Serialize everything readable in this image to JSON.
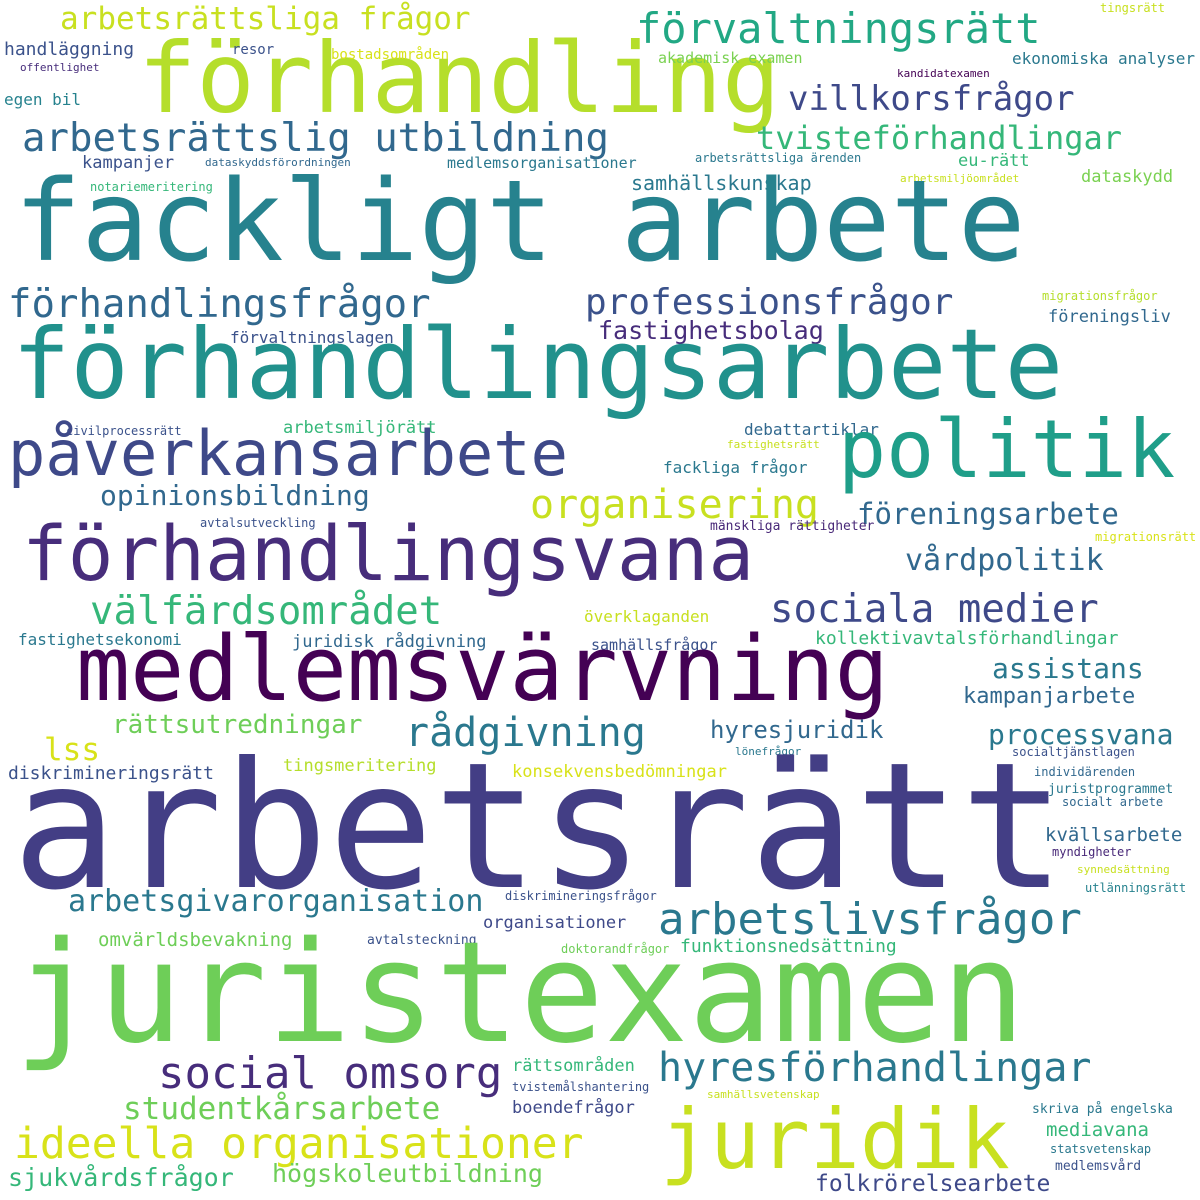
{
  "words": [
    {
      "text": "arbetsrättsliga frågor",
      "color": "#c8e020"
    },
    {
      "text": "förvaltningsrätt",
      "color": "#22a884"
    },
    {
      "text": "tingsrätt",
      "color": "#c8e020"
    },
    {
      "text": "förhandling",
      "color": "#b5de2b"
    },
    {
      "text": "handläggning",
      "color": "#3b528b"
    },
    {
      "text": "resor",
      "color": "#3b528b"
    },
    {
      "text": "bostadsområden",
      "color": "#d8e219"
    },
    {
      "text": "akademisk examen",
      "color": "#7ad151"
    },
    {
      "text": "ekonomiska analyser",
      "color": "#2a788e"
    },
    {
      "text": "offentlighet",
      "color": "#472d7b"
    },
    {
      "text": "kandidatexamen",
      "color": "#440154"
    },
    {
      "text": "egen bil",
      "color": "#26828e"
    },
    {
      "text": "villkorsfrågor",
      "color": "#3e4989"
    },
    {
      "text": "arbetsrättslig utbildning",
      "color": "#31688e"
    },
    {
      "text": "tvisteförhandlingar",
      "color": "#35b779"
    },
    {
      "text": "kampanjer",
      "color": "#3b528b"
    },
    {
      "text": "dataskyddsförordningen",
      "color": "#31688e"
    },
    {
      "text": "medlemsorganisationer",
      "color": "#2a788e"
    },
    {
      "text": "arbetsrättsliga ärenden",
      "color": "#2a788e"
    },
    {
      "text": "eu-rätt",
      "color": "#35b779"
    },
    {
      "text": "samhällskunskap",
      "color": "#2a788e"
    },
    {
      "text": "notariemeritering",
      "color": "#35b779"
    },
    {
      "text": "arbetsmiljöområdet",
      "color": "#c8e020"
    },
    {
      "text": "dataskydd",
      "color": "#7ad151"
    },
    {
      "text": "fackligt arbete",
      "color": "#26828e"
    },
    {
      "text": "förhandlingsfrågor",
      "color": "#31688e"
    },
    {
      "text": "professionsfrågor",
      "color": "#3b528b"
    },
    {
      "text": "migrationsfrågor",
      "color": "#b5de2b"
    },
    {
      "text": "fastighetsbolag",
      "color": "#472d7b"
    },
    {
      "text": "föreningsliv",
      "color": "#31688e"
    },
    {
      "text": "förvaltningslagen",
      "color": "#3b528b"
    },
    {
      "text": "förhandlingsarbete",
      "color": "#21918c"
    },
    {
      "text": "civilprocessrätt",
      "color": "#3b528b"
    },
    {
      "text": "arbetsmiljörätt",
      "color": "#35b779"
    },
    {
      "text": "debattartiklar",
      "color": "#31688e"
    },
    {
      "text": "fastighetsrätt",
      "color": "#c8e020"
    },
    {
      "text": "påverkansarbete",
      "color": "#3e4989"
    },
    {
      "text": "politik",
      "color": "#1f9e89"
    },
    {
      "text": "fackliga frågor",
      "color": "#2a788e"
    },
    {
      "text": "opinionsbildning",
      "color": "#31688e"
    },
    {
      "text": "organisering",
      "color": "#c8e020"
    },
    {
      "text": "föreningsarbete",
      "color": "#31688e"
    },
    {
      "text": "avtalsutveckling",
      "color": "#3b528b"
    },
    {
      "text": "mänskliga rättigheter",
      "color": "#482878"
    },
    {
      "text": "migrationsrätt",
      "color": "#d8e219"
    },
    {
      "text": "förhandlingsvana",
      "color": "#472d7b"
    },
    {
      "text": "vårdpolitik",
      "color": "#31688e"
    },
    {
      "text": "välfärdsområdet",
      "color": "#35b779"
    },
    {
      "text": "sociala medier",
      "color": "#3e4989"
    },
    {
      "text": "överklaganden",
      "color": "#c8e020"
    },
    {
      "text": "fastighetsekonomi",
      "color": "#2a788e"
    },
    {
      "text": "juridisk rådgivning",
      "color": "#31688e"
    },
    {
      "text": "samhällsfrågor",
      "color": "#3b528b"
    },
    {
      "text": "kollektivavtalsförhandlingar",
      "color": "#35b779"
    },
    {
      "text": "medlemsvärvning",
      "color": "#440154"
    },
    {
      "text": "assistans",
      "color": "#2a788e"
    },
    {
      "text": "kampanjarbete",
      "color": "#31688e"
    },
    {
      "text": "rättsutredningar",
      "color": "#6ece58"
    },
    {
      "text": "rådgivning",
      "color": "#2a788e"
    },
    {
      "text": "hyresjuridik",
      "color": "#31688e"
    },
    {
      "text": "lss",
      "color": "#d8e219"
    },
    {
      "text": "processvana",
      "color": "#2a788e"
    },
    {
      "text": "lönefrågor",
      "color": "#2a788e"
    },
    {
      "text": "socialtjänstlagen",
      "color": "#3b528b"
    },
    {
      "text": "diskrimineringsrätt",
      "color": "#3b528b"
    },
    {
      "text": "tingsmeritering",
      "color": "#b5de2b"
    },
    {
      "text": "konsekvensbedömningar",
      "color": "#d8e219"
    },
    {
      "text": "individärenden",
      "color": "#31688e"
    },
    {
      "text": "arbetsrätt",
      "color": "#433e85"
    },
    {
      "text": "juristprogrammet",
      "color": "#2a788e"
    },
    {
      "text": "socialt arbete",
      "color": "#31688e"
    },
    {
      "text": "kvällsarbete",
      "color": "#31688e"
    },
    {
      "text": "myndigheter",
      "color": "#482878"
    },
    {
      "text": "synnedsättning",
      "color": "#c8e020"
    },
    {
      "text": "diskrimineringsfrågor",
      "color": "#3b528b"
    },
    {
      "text": "utlänningsrätt",
      "color": "#26828e"
    },
    {
      "text": "arbetsgivarorganisation",
      "color": "#2a788e"
    },
    {
      "text": "arbetslivsfrågor",
      "color": "#2a788e"
    },
    {
      "text": "organisationer",
      "color": "#3e4989"
    },
    {
      "text": "omvärldsbevakning",
      "color": "#6ece58"
    },
    {
      "text": "avtalsteckning",
      "color": "#3b528b"
    },
    {
      "text": "doktorandfrågor",
      "color": "#6ece58"
    },
    {
      "text": "funktionsnedsättning",
      "color": "#35b779"
    },
    {
      "text": "juristexamen",
      "color": "#6ece58"
    },
    {
      "text": "rättsområden",
      "color": "#35b779"
    },
    {
      "text": "social omsorg",
      "color": "#472d7b"
    },
    {
      "text": "hyresförhandlingar",
      "color": "#2a788e"
    },
    {
      "text": "tvistemålshantering",
      "color": "#3b528b"
    },
    {
      "text": "samhällsvetenskap",
      "color": "#c8e020"
    },
    {
      "text": "studentkårsarbete",
      "color": "#6ece58"
    },
    {
      "text": "boendefrågor",
      "color": "#3e4989"
    },
    {
      "text": "skriva på engelska",
      "color": "#2a788e"
    },
    {
      "text": "ideella organisationer",
      "color": "#d8e219"
    },
    {
      "text": "juridik",
      "color": "#c8e020"
    },
    {
      "text": "mediavana",
      "color": "#35b779"
    },
    {
      "text": "statsvetenskap",
      "color": "#2a788e"
    },
    {
      "text": "sjukvårdsfrågor",
      "color": "#35b779"
    },
    {
      "text": "högskoleutbildning",
      "color": "#6ece58"
    },
    {
      "text": "medlemsvård",
      "color": "#3b528b"
    },
    {
      "text": "folkrörelsearbete",
      "color": "#3e4989"
    }
  ]
}
